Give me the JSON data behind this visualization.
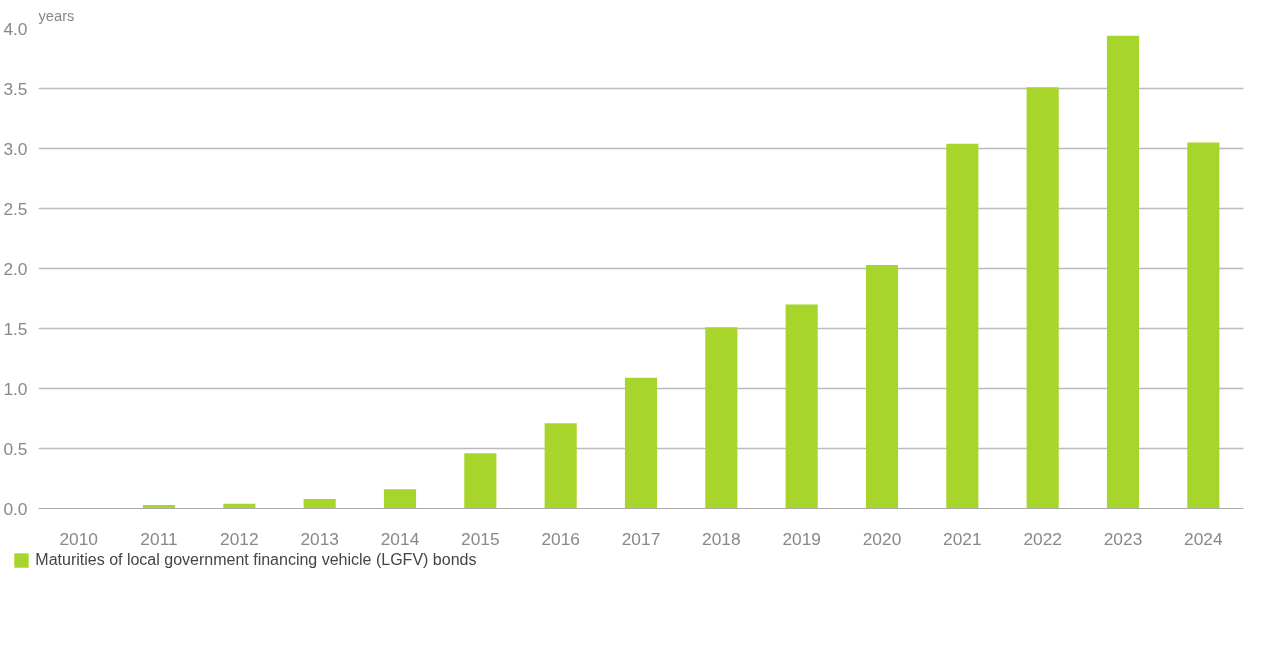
{
  "chart_data": {
    "type": "bar",
    "ylabel": "years",
    "categories": [
      "2010",
      "2011",
      "2012",
      "2013",
      "2014",
      "2015",
      "2016",
      "2017",
      "2018",
      "2019",
      "2020",
      "2021",
      "2022",
      "2023",
      "2024"
    ],
    "series": [
      {
        "name": "Maturities of local government financing vehicle (LGFV) bonds",
        "color": "#a8d52b",
        "values": [
          0,
          0.03,
          0.04,
          0.08,
          0.16,
          0.46,
          0.71,
          1.09,
          1.51,
          1.7,
          2.03,
          3.04,
          3.51,
          3.94,
          3.05
        ]
      }
    ],
    "ylim": [
      0,
      4.0
    ],
    "yticks": [
      {
        "value": 0,
        "label": "0.0"
      },
      {
        "value": 0.5,
        "label": "0.5"
      },
      {
        "value": 1,
        "label": "1.0"
      },
      {
        "value": 1.5,
        "label": "1.5"
      },
      {
        "value": 2,
        "label": "2.0"
      },
      {
        "value": 2.5,
        "label": "2.5"
      },
      {
        "value": 3,
        "label": "3.0"
      },
      {
        "value": 3.5,
        "label": "3.5"
      },
      {
        "value": 4,
        "label": "4.0"
      }
    ],
    "grid": "y",
    "legend": "bottom left"
  }
}
